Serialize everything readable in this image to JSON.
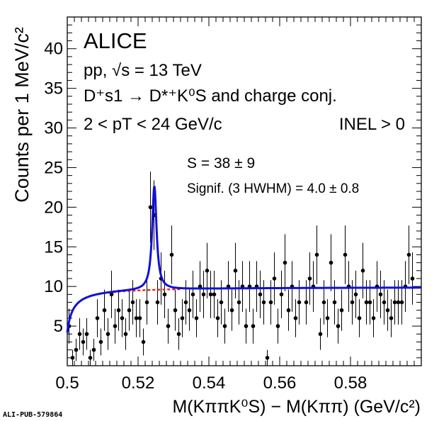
{
  "pub_id": "ALI-PUB-579864",
  "chart_data": {
    "type": "scatter",
    "xlim": [
      0.5,
      0.6
    ],
    "ylim": [
      0,
      44
    ],
    "x_ticks": [
      0.5,
      0.52,
      0.54,
      0.56,
      0.58
    ],
    "x_tick_labels": [
      "0.5",
      "0.52",
      "0.54",
      "0.56",
      "0.58"
    ],
    "y_ticks": [
      5,
      10,
      15,
      20,
      25,
      30,
      35,
      40
    ],
    "y_tick_labels": [
      "5",
      "10",
      "15",
      "20",
      "25",
      "30",
      "35",
      "40"
    ],
    "ylabel": "Counts per 1 MeV/c²",
    "xlabel": "M(KππK⁰S) − M(Kππ) (GeV/c²)",
    "grid": false,
    "legend": "none",
    "annotations": {
      "experiment": "ALICE",
      "system": "pp, √s = 13 TeV",
      "decay": "D⁺s1 → D*⁺K⁰S and charge conj.",
      "pt_range": "2 < pT < 24 GeV/c",
      "event_class": "INEL > 0",
      "signal_yield": "S = 38 ± 9",
      "significance": "Signif. (3 HWHM) = 4.0 ± 0.8"
    },
    "series": [
      {
        "kind": "data",
        "color": "#000000",
        "points": [
          [
            0.5005,
            5,
            2.2
          ],
          [
            0.5015,
            1,
            1
          ],
          [
            0.5025,
            2,
            1.4
          ],
          [
            0.5035,
            4,
            2
          ],
          [
            0.5045,
            3,
            1.7
          ],
          [
            0.5055,
            4,
            2
          ],
          [
            0.5065,
            1,
            1
          ],
          [
            0.5075,
            2,
            1.4
          ],
          [
            0.5085,
            6,
            2.4
          ],
          [
            0.5095,
            3,
            1.7
          ],
          [
            0.5105,
            7,
            2.6
          ],
          [
            0.5115,
            4,
            2
          ],
          [
            0.5125,
            9,
            3
          ],
          [
            0.5135,
            5,
            2.2
          ],
          [
            0.5145,
            7,
            2.6
          ],
          [
            0.5155,
            6,
            2.4
          ],
          [
            0.5165,
            4,
            2
          ],
          [
            0.5175,
            7,
            2.6
          ],
          [
            0.5185,
            8,
            2.8
          ],
          [
            0.5195,
            6,
            2.4
          ],
          [
            0.5205,
            6,
            2.4
          ],
          [
            0.5215,
            3,
            1.7
          ],
          [
            0.5225,
            8,
            2.8
          ],
          [
            0.5235,
            20,
            4.5
          ],
          [
            0.5245,
            19,
            4.4
          ],
          [
            0.5255,
            8,
            2.8
          ],
          [
            0.5265,
            11,
            3.3
          ],
          [
            0.5275,
            9,
            3
          ],
          [
            0.5285,
            5,
            2.2
          ],
          [
            0.5295,
            14,
            3.7
          ],
          [
            0.5305,
            7,
            2.6
          ],
          [
            0.5315,
            4,
            2
          ],
          [
            0.5325,
            6,
            2.4
          ],
          [
            0.5335,
            8,
            2.8
          ],
          [
            0.5345,
            7,
            2.6
          ],
          [
            0.5355,
            9,
            3
          ],
          [
            0.5365,
            6,
            2.4
          ],
          [
            0.5375,
            10,
            3.2
          ],
          [
            0.5385,
            9,
            3
          ],
          [
            0.5395,
            12,
            3.5
          ],
          [
            0.5405,
            9,
            3
          ],
          [
            0.5415,
            9,
            3
          ],
          [
            0.5425,
            6,
            2.4
          ],
          [
            0.5435,
            8,
            2.8
          ],
          [
            0.5445,
            5,
            2.2
          ],
          [
            0.5455,
            10,
            3.2
          ],
          [
            0.5465,
            7,
            2.6
          ],
          [
            0.5475,
            12,
            3.5
          ],
          [
            0.5485,
            8,
            2.8
          ],
          [
            0.5495,
            10,
            3.2
          ],
          [
            0.5505,
            5,
            2.2
          ],
          [
            0.5515,
            10,
            3.2
          ],
          [
            0.5525,
            5,
            2.2
          ],
          [
            0.5535,
            10,
            3.2
          ],
          [
            0.5545,
            9,
            3
          ],
          [
            0.5555,
            8,
            2.8
          ],
          [
            0.5565,
            1,
            1
          ],
          [
            0.5575,
            8,
            2.8
          ],
          [
            0.5585,
            11,
            3.3
          ],
          [
            0.5595,
            5,
            2.2
          ],
          [
            0.5605,
            9,
            3
          ],
          [
            0.5615,
            13,
            3.6
          ],
          [
            0.5625,
            7,
            2.6
          ],
          [
            0.5635,
            10,
            3.2
          ],
          [
            0.5645,
            6,
            2.4
          ],
          [
            0.5655,
            8,
            2.8
          ],
          [
            0.5675,
            8,
            2.8
          ],
          [
            0.5685,
            11,
            3.3
          ],
          [
            0.5695,
            10,
            3.2
          ],
          [
            0.5705,
            14,
            3.7
          ],
          [
            0.5715,
            4,
            2
          ],
          [
            0.5725,
            8,
            2.8
          ],
          [
            0.5735,
            6,
            2.4
          ],
          [
            0.5745,
            13,
            3.6
          ],
          [
            0.5755,
            8,
            2.8
          ],
          [
            0.5765,
            5,
            2.2
          ],
          [
            0.5775,
            7,
            2.6
          ],
          [
            0.5785,
            14,
            3.7
          ],
          [
            0.5795,
            10,
            3.2
          ],
          [
            0.5805,
            8,
            2.8
          ],
          [
            0.5815,
            9,
            3
          ],
          [
            0.5825,
            6,
            2.4
          ],
          [
            0.5835,
            12,
            3.5
          ],
          [
            0.5845,
            8,
            2.8
          ],
          [
            0.5855,
            8,
            2.8
          ],
          [
            0.5865,
            6,
            2.4
          ],
          [
            0.5875,
            10,
            3.2
          ],
          [
            0.5885,
            9,
            3
          ],
          [
            0.5895,
            8,
            2.8
          ],
          [
            0.5905,
            7,
            2.6
          ],
          [
            0.5915,
            6,
            2.4
          ],
          [
            0.5925,
            8,
            2.8
          ],
          [
            0.5935,
            8,
            2.8
          ],
          [
            0.5945,
            8,
            2.8
          ],
          [
            0.5955,
            10,
            3.2
          ],
          [
            0.5965,
            14,
            3.7
          ],
          [
            0.5975,
            11,
            3.3
          ]
        ]
      },
      {
        "kind": "total-fit",
        "color": "#1010d8",
        "peak": {
          "mean": 0.5246,
          "amplitude": 13.1,
          "hwhm": 0.00075
        },
        "background": {
          "a": 9.95,
          "b": 0.00165,
          "c": 0.6
        }
      },
      {
        "kind": "background-fit",
        "color": "#e02020",
        "style": "dashed",
        "range": [
          0.5,
          0.532
        ]
      }
    ]
  }
}
